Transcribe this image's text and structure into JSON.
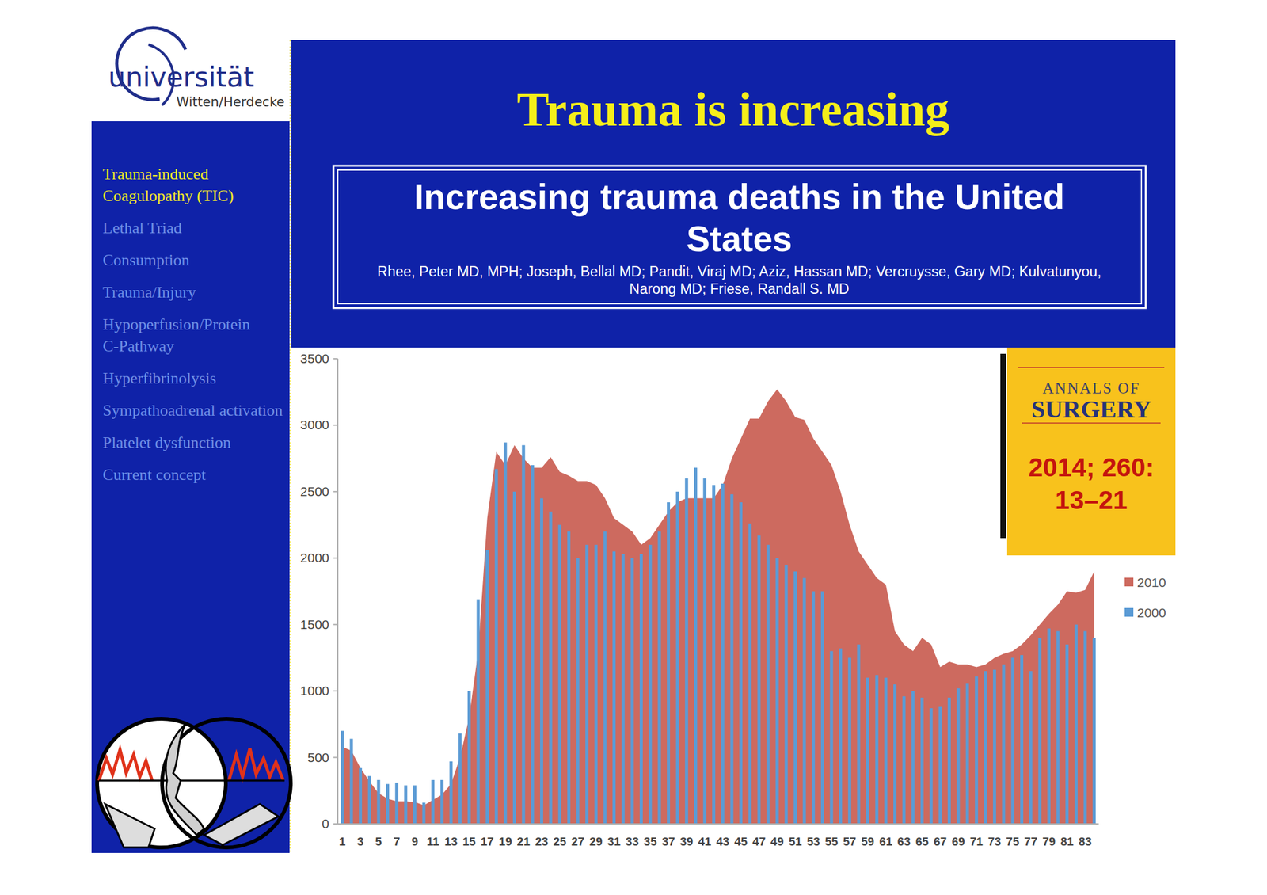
{
  "slide": {
    "university": {
      "name": "universität",
      "place": "Witten/Herdecke"
    },
    "title": "Trauma is increasing",
    "paper_title": "Increasing trauma deaths in the United States",
    "authors": "Rhee, Peter MD, MPH; Joseph, Bellal MD; Pandit, Viraj MD; Aziz, Hassan MD; Vercruysse, Gary MD; Kulvatunyou, Narong MD; Friese, Randall S. MD",
    "journal": [
      "ANNALS OF",
      "SURGERY"
    ],
    "citation": [
      "2014; 260:",
      "13–21"
    ],
    "menu": [
      "Trauma-induced Coagulopathy (TIC)",
      "Lethal Triad",
      "Consumption",
      "Trauma/Injury",
      "Hypoperfusion/Protein C-Pathway",
      "Hyperfibrinolysis",
      "Sympathoadrenal activation",
      "Platelet dysfunction",
      "Current concept"
    ]
  },
  "chart_data": {
    "type": "bar",
    "categories": [
      "1",
      null,
      "3",
      null,
      "5",
      null,
      "7",
      null,
      "9",
      null,
      "11",
      null,
      "13",
      null,
      "15",
      null,
      "17",
      null,
      "19",
      null,
      "21",
      null,
      "23",
      null,
      "25",
      null,
      "27",
      null,
      "29",
      null,
      "31",
      null,
      "33",
      null,
      "35",
      null,
      "37",
      null,
      "39",
      null,
      "41",
      null,
      "43",
      null,
      "45",
      null,
      "47",
      null,
      "49",
      null,
      "51",
      null,
      "53",
      null,
      "55",
      null,
      "57",
      null,
      "59",
      null,
      "61",
      null,
      "63",
      null,
      "65",
      null,
      "67",
      null,
      "69",
      null,
      "71",
      null,
      "73",
      null,
      "75",
      null,
      "77",
      null,
      "79",
      null,
      "81",
      null,
      "83",
      null
    ],
    "series": [
      {
        "name": "2010",
        "type": "area",
        "color": "#cd6a5f",
        "values": [
          580,
          550,
          420,
          320,
          230,
          190,
          170,
          170,
          165,
          140,
          180,
          220,
          300,
          500,
          800,
          1300,
          2300,
          2800,
          2700,
          2850,
          2750,
          2680,
          2680,
          2760,
          2650,
          2620,
          2580,
          2580,
          2550,
          2450,
          2300,
          2250,
          2200,
          2100,
          2150,
          2250,
          2350,
          2420,
          2450,
          2450,
          2450,
          2450,
          2550,
          2750,
          2900,
          3050,
          3050,
          3180,
          3270,
          3180,
          3060,
          3040,
          2900,
          2800,
          2700,
          2500,
          2250,
          2050,
          1950,
          1850,
          1800,
          1450,
          1350,
          1300,
          1400,
          1350,
          1180,
          1220,
          1200,
          1200,
          1180,
          1200,
          1250,
          1280,
          1300,
          1350,
          1420,
          1500,
          1580,
          1650,
          1750,
          1740,
          1760,
          1900
        ]
      },
      {
        "name": "2000",
        "type": "bar",
        "color": "#5b9bd5",
        "values": [
          700,
          640,
          420,
          360,
          330,
          300,
          310,
          290,
          290,
          160,
          330,
          330,
          470,
          680,
          1000,
          1690,
          2060,
          2670,
          2870,
          2500,
          2850,
          2700,
          2450,
          2350,
          2250,
          2200,
          2000,
          2100,
          2100,
          2200,
          2050,
          2030,
          2000,
          2030,
          2100,
          2200,
          2420,
          2500,
          2600,
          2680,
          2600,
          2550,
          2560,
          2480,
          2420,
          2260,
          2170,
          2100,
          2000,
          1950,
          1900,
          1850,
          1750,
          1750,
          1300,
          1320,
          1250,
          1350,
          1100,
          1120,
          1100,
          1050,
          960,
          1000,
          950,
          870,
          880,
          950,
          1020,
          1060,
          1110,
          1150,
          1160,
          1200,
          1250,
          1270,
          1150,
          1400,
          1470,
          1450,
          1350,
          1500,
          1450,
          1400
        ]
      }
    ],
    "ylim": [
      0,
      3500
    ],
    "yticks": [
      0,
      500,
      1000,
      1500,
      2000,
      2500,
      3000,
      3500
    ],
    "grid": false,
    "legend": "right"
  }
}
